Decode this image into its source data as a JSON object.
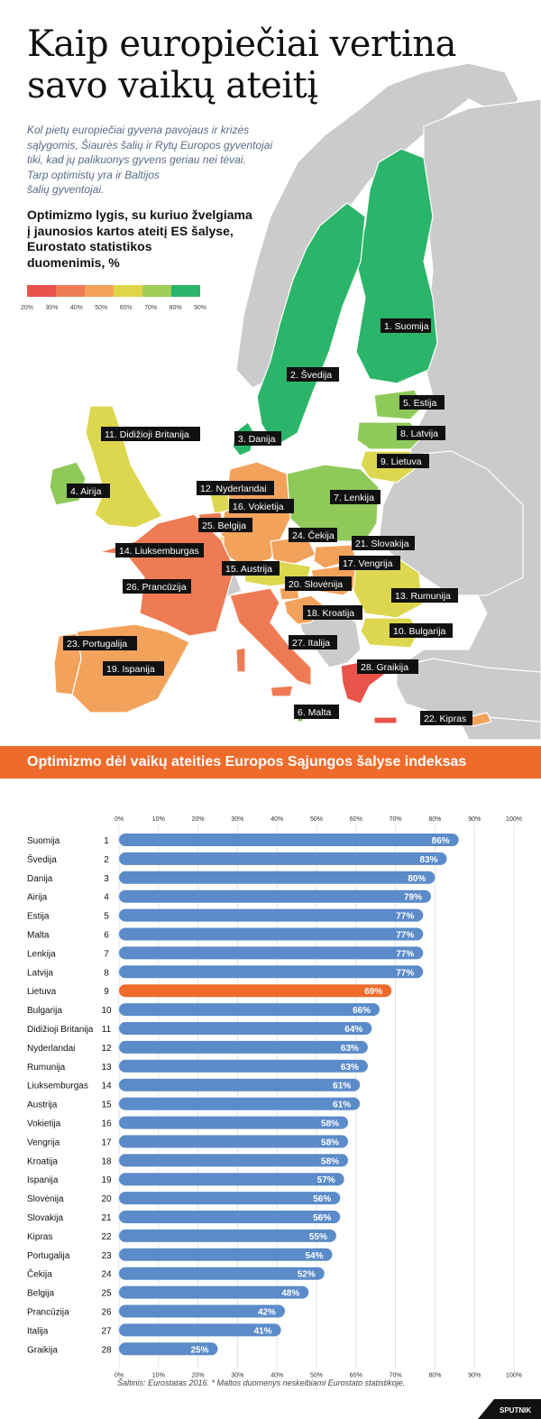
{
  "title": {
    "line1": "Kaip europiečiai vertina",
    "line2": "savo vaikų ateitį"
  },
  "intro": {
    "lines": [
      "Kol pietų europiečiai gyvena pavojaus ir krizės",
      "sąlygomis, Šiaurės šalių ir Rytų Europos gyventojai",
      "tiki, kad jų palikuonys gyvens geriau nei tėvai.",
      "Tarp optimistų yra ir Baltijos",
      "šalių gyventojai."
    ]
  },
  "map": {
    "subtitle_lines": [
      "Optimizmo lygis, su kuriuo žvelgiama",
      "į jaunosios kartos ateitį ES šalyse,",
      "Eurostato statistikos",
      "duomenimis, %"
    ],
    "legend": {
      "ticks": [
        "20%",
        "30%",
        "40%",
        "50%",
        "60%",
        "70%",
        "80%",
        "90%"
      ],
      "colors": [
        "#e8534a",
        "#ef7b54",
        "#f3a25c",
        "#dfd548",
        "#9fcf56",
        "#2bb56a"
      ]
    },
    "colors": {
      "sea": "#ffffff",
      "nonEU": "#cbcbcb",
      "green": "#2bb56a",
      "lightgreen": "#8fc95a",
      "yellowgreen": "#b5d25a",
      "yellow": "#dcd74e",
      "orange": "#f3a25c",
      "darkorange": "#ef7b54",
      "red": "#e8534a"
    },
    "labels": [
      "1. Suomija",
      "2. Švedija",
      "3. Danija",
      "4. Airija",
      "5. Estija",
      "6. Malta",
      "7. Lenkija",
      "8. Latvija",
      "9. Lietuva",
      "10. Bulgarija",
      "11. Didižioji Britanija",
      "12. Nyderlandai",
      "13. Rumunija",
      "14. Liuksemburgas",
      "15. Austrija",
      "16. Vokietija",
      "17. Vengrija",
      "18. Kroatija",
      "19. Ispanija",
      "20. Slovėnija",
      "21. Slovakija",
      "22. Kipras",
      "23. Portugalija",
      "24. Čekija",
      "25. Belgija",
      "26. Prancūzija",
      "27. Italija",
      "28. Graikija"
    ]
  },
  "banner": {
    "text": "Optimizmo dėl vaikų ateities Europos Sąjungos šalyse indeksas"
  },
  "chart_data": {
    "type": "bar",
    "orientation": "horizontal",
    "xlim": [
      0,
      100
    ],
    "x_ticks": [
      "0%",
      "10%",
      "20%",
      "30%",
      "40%",
      "50%",
      "60%",
      "70%",
      "80%",
      "90%",
      "100%"
    ],
    "grid": true,
    "categories": [
      "Suomija",
      "Švedija",
      "Danija",
      "Airija",
      "Estija",
      "Malta",
      "Lenkija",
      "Latvija",
      "Lietuva",
      "Bulgarija",
      "Didižioji Britanija",
      "Nyderlandai",
      "Rumunija",
      "Liuksemburgas",
      "Austrija",
      "Vokietija",
      "Vengrija",
      "Kroatija",
      "Ispanija",
      "Slovėnija",
      "Slovakija",
      "Kipras",
      "Portugalija",
      "Čekija",
      "Belgija",
      "Prancūzija",
      "Italija",
      "Graikija"
    ],
    "ranks": [
      "1",
      "2",
      "3",
      "4",
      "5",
      "6",
      "7",
      "8",
      "9",
      "10",
      "11",
      "12",
      "13",
      "14",
      "15",
      "16",
      "17",
      "18",
      "19",
      "20",
      "21",
      "22",
      "23",
      "24",
      "25",
      "26",
      "27",
      "28"
    ],
    "values": [
      86,
      83,
      80,
      79,
      77,
      77,
      77,
      77,
      69,
      66,
      64,
      63,
      63,
      61,
      61,
      58,
      58,
      58,
      57,
      56,
      56,
      55,
      54,
      52,
      48,
      42,
      41,
      25
    ],
    "value_labels": [
      "86%",
      "83%",
      "80%",
      "79%",
      "77%",
      "77%",
      "77%",
      "77%",
      "69%",
      "66%",
      "64%",
      "63%",
      "63%",
      "61%",
      "61%",
      "58%",
      "58%",
      "58%",
      "57%",
      "56%",
      "56%",
      "55%",
      "54%",
      "52%",
      "48%",
      "42%",
      "41%",
      "25%"
    ],
    "bar_color": "#5b8bc9",
    "highlight": {
      "category": "Lietuva",
      "color": "#ee6b2b"
    }
  },
  "source": "Šaltinis: Eurostatas 2016. * Maltos duomenys neskelbiami Eurostato statistikoje.",
  "logo": {
    "text": "SPUTNIK"
  }
}
